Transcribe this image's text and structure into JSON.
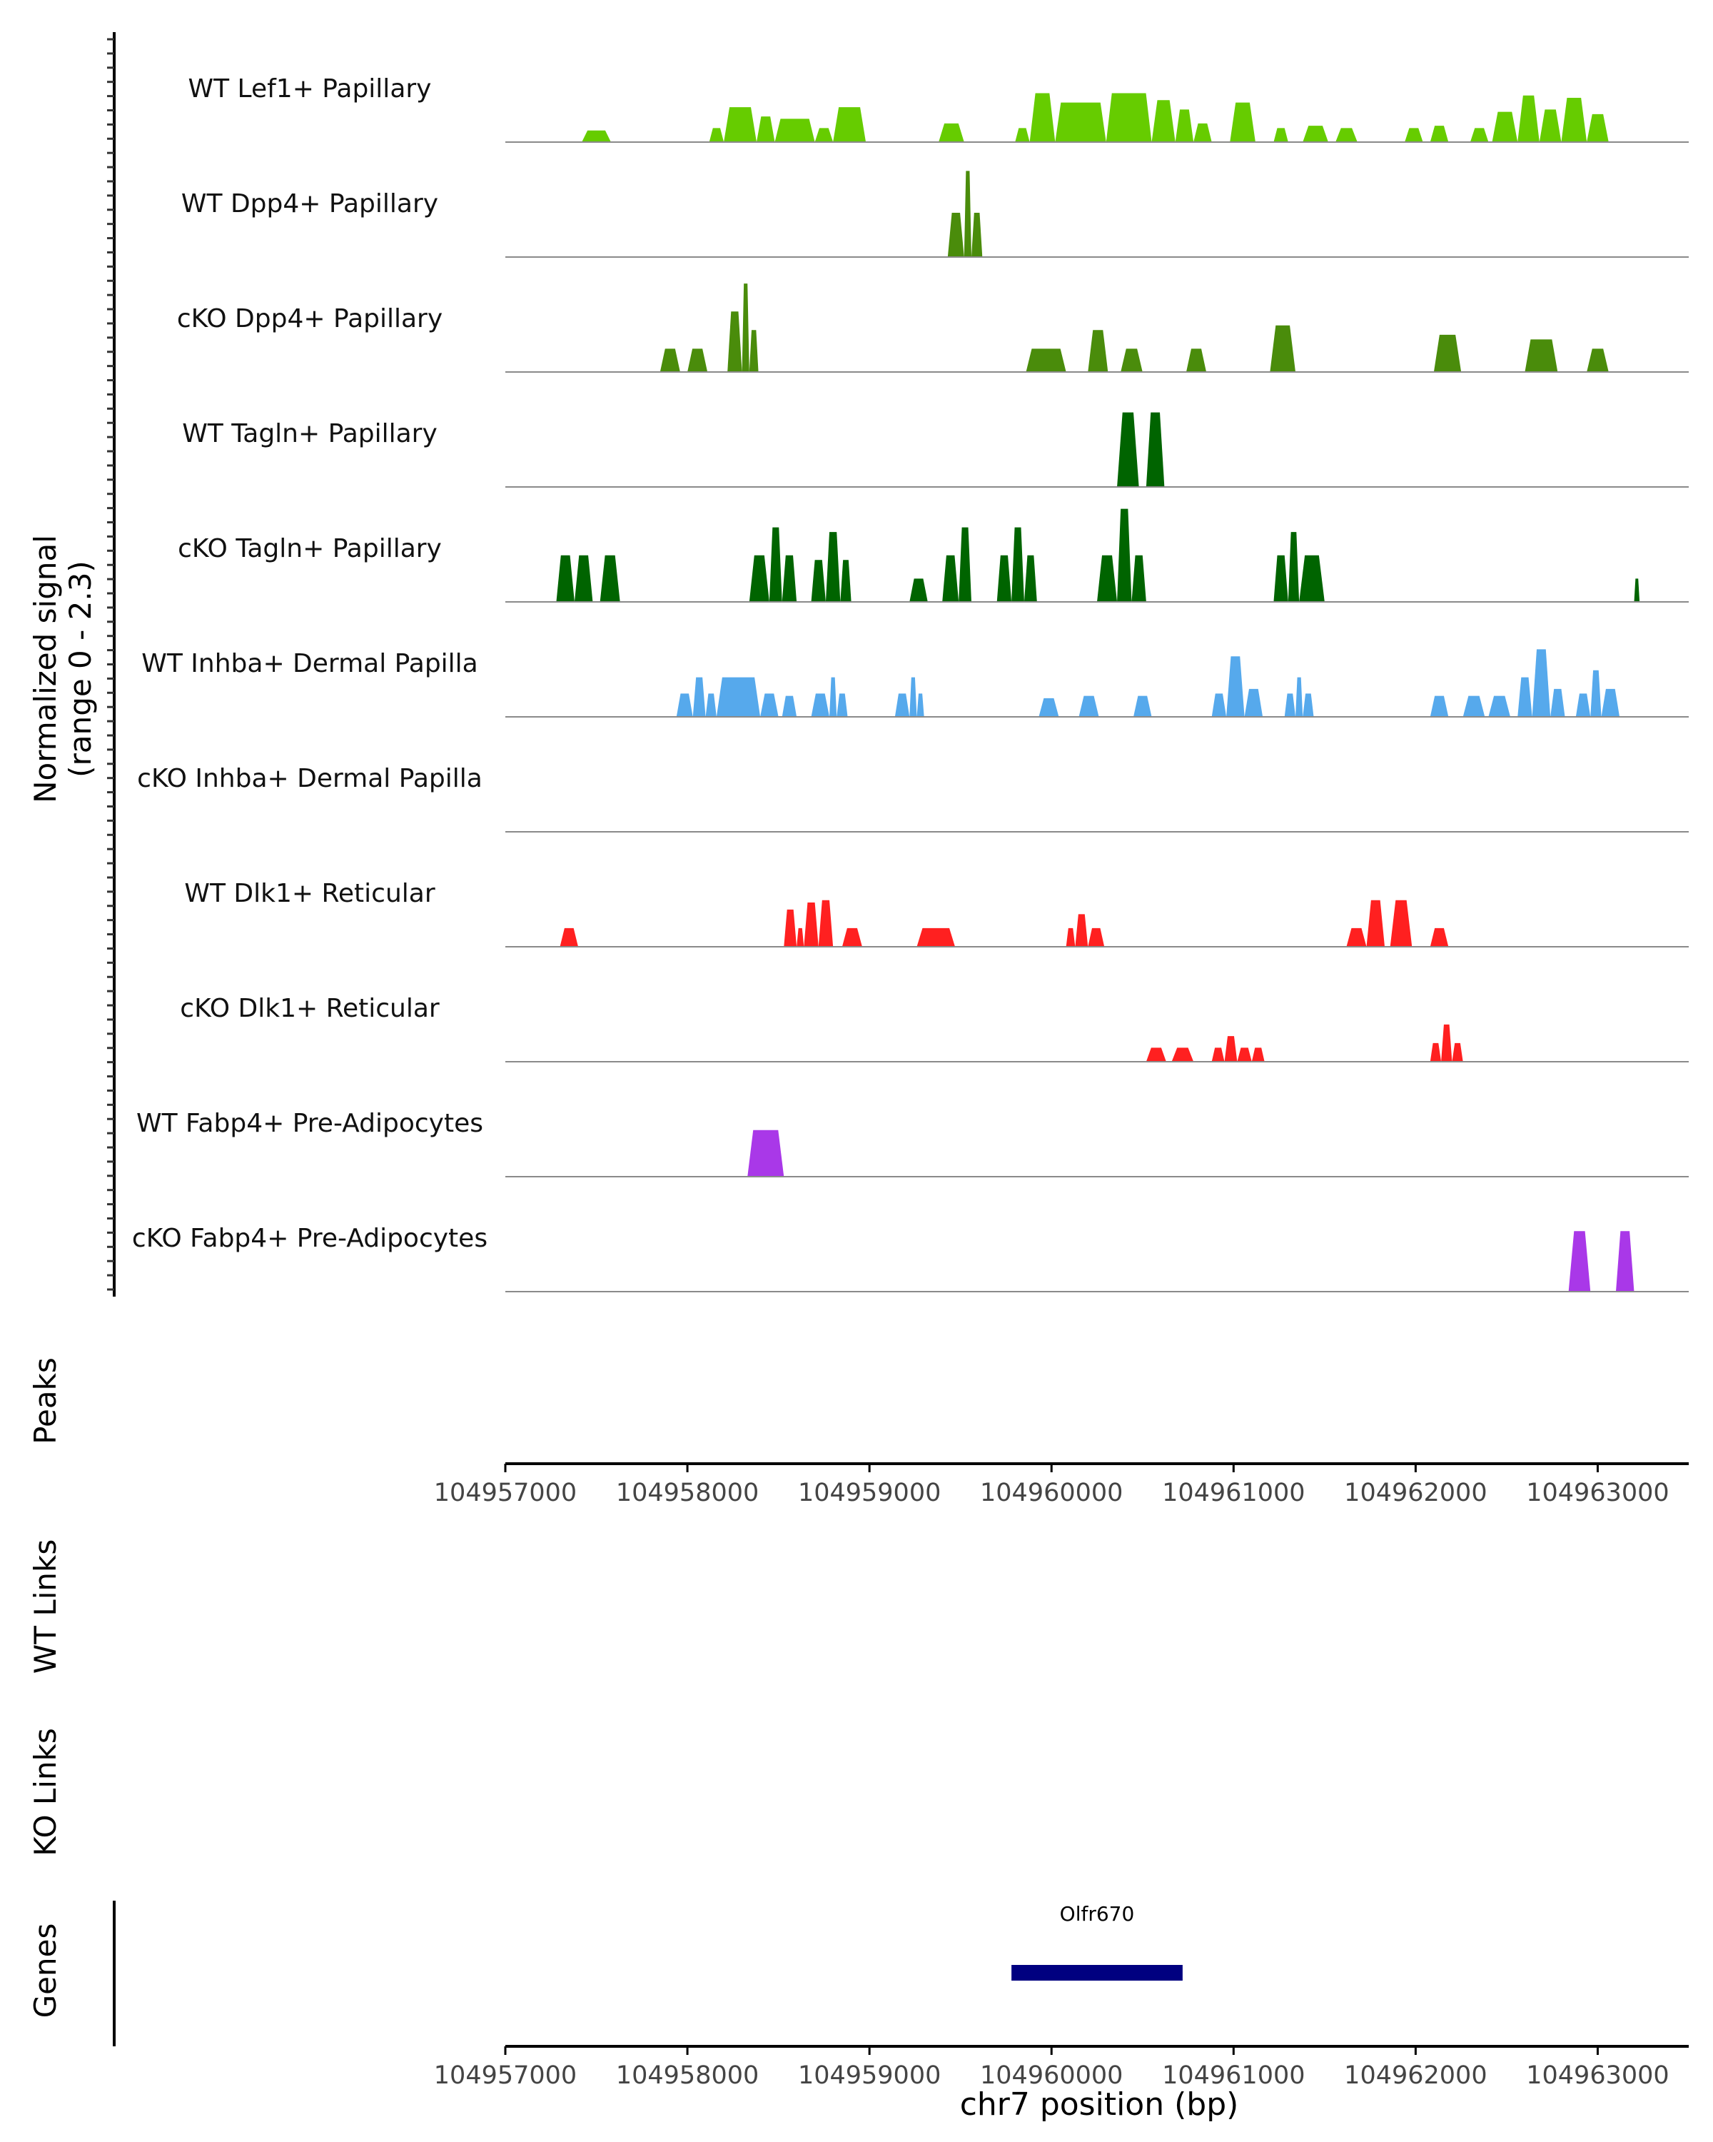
{
  "chart_data": {
    "type": "area",
    "title": "",
    "chromosome": "chr7",
    "xlabel": "chr7 position (bp)",
    "xlim": [
      104957000,
      104963500
    ],
    "x_ticks": [
      104957000,
      104958000,
      104959000,
      104960000,
      104961000,
      104962000,
      104963000
    ],
    "x_tick_labels": [
      "104957000",
      "104958000",
      "104959000",
      "104960000",
      "104961000",
      "104962000",
      "104963000"
    ],
    "y_axis_label_line1": "Normalized signal",
    "y_axis_label_line2": "(range 0 - 2.3)",
    "ylim": [
      0,
      2.3
    ],
    "tracks": [
      {
        "name": "WT Lef1+ Papillary",
        "color": "#66CC00",
        "peaks": [
          [
            104957420,
            104957580,
            0.25
          ],
          [
            104958120,
            104958200,
            0.3
          ],
          [
            104958200,
            104958380,
            0.75
          ],
          [
            104958380,
            104958480,
            0.55
          ],
          [
            104958480,
            104958700,
            0.5
          ],
          [
            104958700,
            104958800,
            0.3
          ],
          [
            104958800,
            104958980,
            0.75
          ],
          [
            104959380,
            104959520,
            0.4
          ],
          [
            104959800,
            104959880,
            0.3
          ],
          [
            104959880,
            104960020,
            1.05
          ],
          [
            104960020,
            104960300,
            0.85
          ],
          [
            104960300,
            104960550,
            1.05
          ],
          [
            104960550,
            104960680,
            0.9
          ],
          [
            104960680,
            104960780,
            0.7
          ],
          [
            104960780,
            104960880,
            0.4
          ],
          [
            104960980,
            104961120,
            0.85
          ],
          [
            104961220,
            104961300,
            0.3
          ],
          [
            104961380,
            104961520,
            0.35
          ],
          [
            104961560,
            104961680,
            0.3
          ],
          [
            104961940,
            104962040,
            0.3
          ],
          [
            104962080,
            104962180,
            0.35
          ],
          [
            104962300,
            104962400,
            0.3
          ],
          [
            104962420,
            104962560,
            0.65
          ],
          [
            104962560,
            104962680,
            1.0
          ],
          [
            104962680,
            104962800,
            0.7
          ],
          [
            104962800,
            104962940,
            0.95
          ],
          [
            104962940,
            104963060,
            0.6
          ]
        ]
      },
      {
        "name": "WT Dpp4+ Papillary",
        "color": "#4A8C0B",
        "peaks": [
          [
            104959430,
            104959520,
            0.95
          ],
          [
            104959520,
            104959560,
            1.85
          ],
          [
            104959560,
            104959620,
            0.95
          ]
        ]
      },
      {
        "name": "cKO Dpp4+ Papillary",
        "color": "#4A8C0B",
        "peaks": [
          [
            104957850,
            104957960,
            0.5
          ],
          [
            104958000,
            104958110,
            0.5
          ],
          [
            104958220,
            104958300,
            1.3
          ],
          [
            104958300,
            104958340,
            1.9
          ],
          [
            104958340,
            104958390,
            0.9
          ],
          [
            104959860,
            104960080,
            0.5
          ],
          [
            104960200,
            104960310,
            0.9
          ],
          [
            104960380,
            104960500,
            0.5
          ],
          [
            104960740,
            104960850,
            0.5
          ],
          [
            104961200,
            104961340,
            1.0
          ],
          [
            104962100,
            104962250,
            0.8
          ],
          [
            104962600,
            104962780,
            0.7
          ],
          [
            104962940,
            104963060,
            0.5
          ]
        ]
      },
      {
        "name": "WT Tagln+ Papillary",
        "color": "#006400",
        "peaks": [
          [
            104960360,
            104960480,
            1.6
          ],
          [
            104960520,
            104960620,
            1.6
          ]
        ]
      },
      {
        "name": "cKO Tagln+ Papillary",
        "color": "#006400",
        "peaks": [
          [
            104957280,
            104957380,
            1.0
          ],
          [
            104957380,
            104957480,
            1.0
          ],
          [
            104957520,
            104957630,
            1.0
          ],
          [
            104958340,
            104958450,
            1.0
          ],
          [
            104958450,
            104958520,
            1.6
          ],
          [
            104958520,
            104958600,
            1.0
          ],
          [
            104958680,
            104958760,
            0.9
          ],
          [
            104958760,
            104958840,
            1.5
          ],
          [
            104958840,
            104958900,
            0.9
          ],
          [
            104959220,
            104959320,
            0.5
          ],
          [
            104959400,
            104959490,
            1.0
          ],
          [
            104959490,
            104959560,
            1.6
          ],
          [
            104959700,
            104959780,
            1.0
          ],
          [
            104959780,
            104959850,
            1.6
          ],
          [
            104959850,
            104959920,
            1.0
          ],
          [
            104960250,
            104960360,
            1.0
          ],
          [
            104960360,
            104960440,
            2.0
          ],
          [
            104960440,
            104960520,
            1.0
          ],
          [
            104961220,
            104961300,
            1.0
          ],
          [
            104961300,
            104961360,
            1.5
          ],
          [
            104961360,
            104961500,
            1.0
          ],
          [
            104963200,
            104963230,
            0.5
          ]
        ]
      },
      {
        "name": "WT Inhba+ Dermal Papilla",
        "color": "#56A9EC",
        "peaks": [
          [
            104957940,
            104958030,
            0.5
          ],
          [
            104958030,
            104958100,
            0.85
          ],
          [
            104958100,
            104958160,
            0.5
          ],
          [
            104958160,
            104958400,
            0.85
          ],
          [
            104958400,
            104958500,
            0.5
          ],
          [
            104958520,
            104958600,
            0.45
          ],
          [
            104958680,
            104958780,
            0.5
          ],
          [
            104958780,
            104958820,
            0.85
          ],
          [
            104958820,
            104958880,
            0.5
          ],
          [
            104959140,
            104959220,
            0.5
          ],
          [
            104959220,
            104959260,
            0.85
          ],
          [
            104959260,
            104959300,
            0.5
          ],
          [
            104959930,
            104960040,
            0.4
          ],
          [
            104960150,
            104960260,
            0.45
          ],
          [
            104960450,
            104960550,
            0.45
          ],
          [
            104960880,
            104960960,
            0.5
          ],
          [
            104960960,
            104961060,
            1.3
          ],
          [
            104961060,
            104961160,
            0.6
          ],
          [
            104961280,
            104961340,
            0.5
          ],
          [
            104961340,
            104961380,
            0.85
          ],
          [
            104961380,
            104961440,
            0.5
          ],
          [
            104962080,
            104962180,
            0.45
          ],
          [
            104962260,
            104962380,
            0.45
          ],
          [
            104962400,
            104962520,
            0.45
          ],
          [
            104962560,
            104962640,
            0.85
          ],
          [
            104962640,
            104962740,
            1.45
          ],
          [
            104962740,
            104962820,
            0.6
          ],
          [
            104962880,
            104962960,
            0.5
          ],
          [
            104962960,
            104963020,
            1.0
          ],
          [
            104963020,
            104963120,
            0.6
          ]
        ]
      },
      {
        "name": "cKO Inhba+ Dermal Papilla",
        "color": "#56A9EC",
        "peaks": []
      },
      {
        "name": "WT Dlk1+ Reticular",
        "color": "#FF2020",
        "peaks": [
          [
            104957300,
            104957400,
            0.4
          ],
          [
            104958530,
            104958600,
            0.8
          ],
          [
            104958600,
            104958640,
            0.4
          ],
          [
            104958640,
            104958720,
            0.95
          ],
          [
            104958720,
            104958800,
            1.0
          ],
          [
            104958850,
            104958960,
            0.4
          ],
          [
            104959260,
            104959470,
            0.4
          ],
          [
            104960080,
            104960130,
            0.4
          ],
          [
            104960130,
            104960200,
            0.7
          ],
          [
            104960200,
            104960290,
            0.4
          ],
          [
            104961620,
            104961730,
            0.4
          ],
          [
            104961730,
            104961830,
            1.0
          ],
          [
            104961860,
            104961980,
            1.0
          ],
          [
            104962080,
            104962180,
            0.4
          ]
        ]
      },
      {
        "name": "cKO Dlk1+ Reticular",
        "color": "#FF2020",
        "peaks": [
          [
            104960520,
            104960630,
            0.3
          ],
          [
            104960660,
            104960780,
            0.3
          ],
          [
            104960880,
            104960950,
            0.3
          ],
          [
            104960950,
            104961020,
            0.55
          ],
          [
            104961020,
            104961100,
            0.3
          ],
          [
            104961100,
            104961170,
            0.3
          ],
          [
            104962080,
            104962140,
            0.4
          ],
          [
            104962140,
            104962200,
            0.8
          ],
          [
            104962200,
            104962260,
            0.4
          ]
        ]
      },
      {
        "name": "WT Fabp4+ Pre-Adipocytes",
        "color": "#A938E8",
        "peaks": [
          [
            104958330,
            104958530,
            1.0
          ]
        ]
      },
      {
        "name": "cKO Fabp4+ Pre-Adipocytes",
        "color": "#A938E8",
        "peaks": [
          [
            104962840,
            104962960,
            1.3
          ],
          [
            104963100,
            104963200,
            1.3
          ]
        ]
      }
    ],
    "extra_track_labels": {
      "peaks": "Peaks",
      "wt_links": "WT Links",
      "ko_links": "KO Links",
      "genes": "Genes"
    },
    "genes": [
      {
        "name": "Olfr670",
        "start": 104959780,
        "end": 104960720,
        "color": "#000080"
      }
    ]
  }
}
